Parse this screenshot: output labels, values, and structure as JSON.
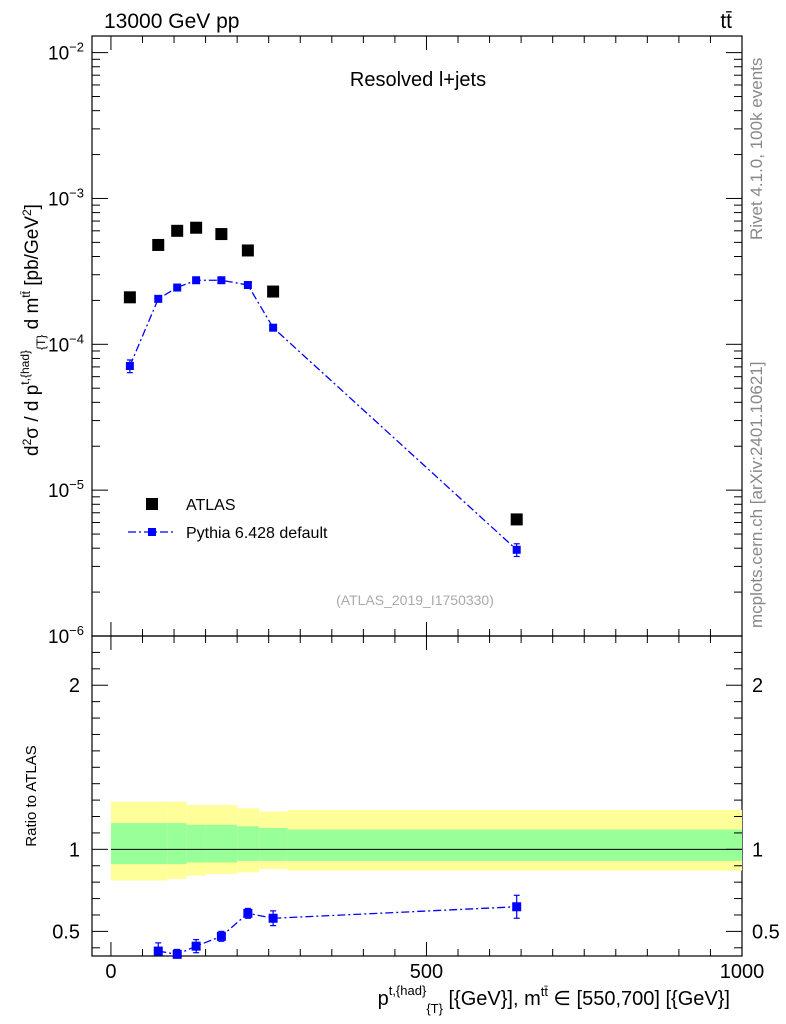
{
  "header": {
    "energy_label": "13000 GeV pp",
    "process_label": "tt̄"
  },
  "side_labels": {
    "rivet": "Rivet 4.1.0,  100k events",
    "mcplots": "mcplots.cern.ch [arXiv:2401.10621]"
  },
  "chart_data": [
    {
      "type": "scatter",
      "panel": "main",
      "title": "Resolved l+jets",
      "analysis_label": "(ATLAS_2019_I1750330)",
      "ylabel": "d²σ / d p^{t,{had}}_{T} d m^{tt̄} [pb/GeV²]",
      "yscale": "log",
      "ylim": [
        1e-06,
        0.013
      ],
      "xlim": [
        -30,
        1000
      ],
      "y_ticks": [
        {
          "value": 0.01,
          "base": "10",
          "exp": "−2"
        },
        {
          "value": 0.001,
          "base": "10",
          "exp": "−3"
        },
        {
          "value": 0.0001,
          "base": "10",
          "exp": "−4"
        },
        {
          "value": 1e-05,
          "base": "10",
          "exp": "−5"
        },
        {
          "value": 1e-06,
          "base": "10",
          "exp": "−6"
        }
      ],
      "legend": [
        {
          "name": "ATLAS",
          "style": "black square markers"
        },
        {
          "name": "Pythia 6.428 default",
          "style": "blue dash-dot line with square markers"
        }
      ],
      "series": [
        {
          "name": "ATLAS",
          "color": "#000000",
          "x": [
            30,
            75,
            105,
            135,
            175,
            217,
            257,
            643
          ],
          "y": [
            0.00021,
            0.00048,
            0.0006,
            0.00063,
            0.00057,
            0.00044,
            0.00023,
            6.3e-06
          ]
        },
        {
          "name": "Pythia 6.428 default",
          "color": "#0000ff",
          "x": [
            30,
            75,
            105,
            135,
            175,
            217,
            257,
            643
          ],
          "y": [
            7.1e-05,
            0.000205,
            0.000245,
            0.000275,
            0.000275,
            0.000255,
            0.00013,
            3.9e-06
          ],
          "y_err": [
            0.1,
            0.02,
            0.02,
            0.02,
            0.02,
            0.03,
            0.02,
            0.1
          ]
        }
      ]
    },
    {
      "type": "scatter",
      "panel": "ratio",
      "ylabel": "Ratio to ATLAS",
      "xlabel": "p^{t,{had}}_{T} [{GeV}], m^{tt̄} ∈ [550,700] [{GeV}]",
      "ylim": [
        0.35,
        2.3
      ],
      "xlim": [
        -30,
        1000
      ],
      "y_ticks": [
        "0.5",
        "1",
        "2"
      ],
      "x_ticks": [
        "0",
        "500",
        "1000"
      ],
      "reference": 1.0,
      "bands": {
        "bin_edges": [
          0,
          90,
          120,
          150,
          200,
          235,
          280,
          1000
        ],
        "inner_low": [
          0.91,
          0.91,
          0.92,
          0.92,
          0.93,
          0.93,
          0.93
        ],
        "inner_high": [
          1.16,
          1.16,
          1.15,
          1.15,
          1.14,
          1.13,
          1.12
        ],
        "outer_low": [
          0.81,
          0.82,
          0.84,
          0.85,
          0.86,
          0.88,
          0.87
        ],
        "outer_high": [
          1.29,
          1.29,
          1.27,
          1.27,
          1.25,
          1.23,
          1.24
        ],
        "inner_color": "#99ff99",
        "outer_color": "#ffff99"
      },
      "series": [
        {
          "name": "Pythia 6.428 default",
          "color": "#0000ff",
          "x": [
            75,
            105,
            135,
            175,
            217,
            257,
            643
          ],
          "y": [
            0.38,
            0.36,
            0.41,
            0.47,
            0.61,
            0.58,
            0.65
          ],
          "y_err": [
            0.05,
            0.03,
            0.04,
            0.03,
            0.03,
            0.045,
            0.07
          ]
        }
      ]
    }
  ]
}
